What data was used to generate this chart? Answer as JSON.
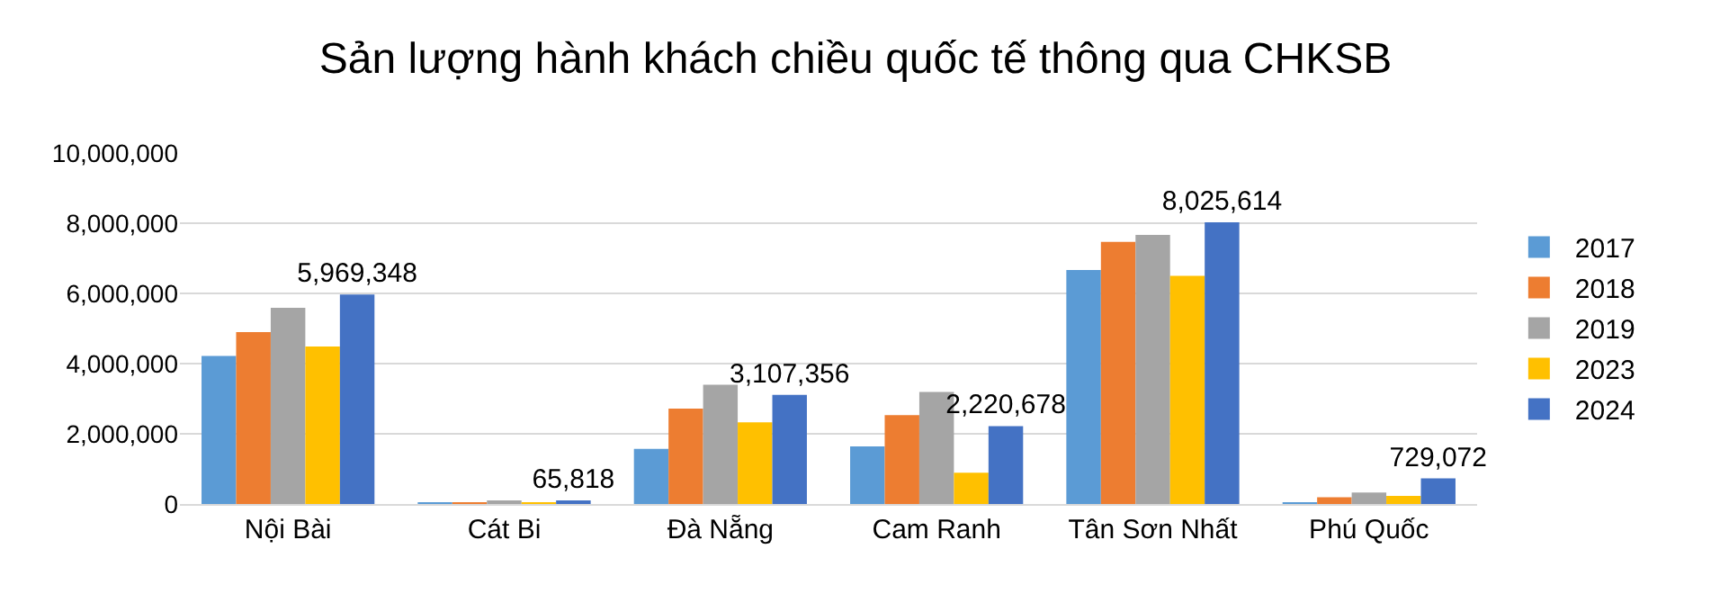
{
  "chart_data": {
    "type": "bar",
    "title": "Sản lượng hành khách chiều quốc tế thông qua CHKSB",
    "categories": [
      "Nội Bài",
      "Cát Bi",
      "Đà Nẵng",
      "Cam Ranh",
      "Tân Sơn Nhất",
      "Phú Quốc"
    ],
    "series": [
      {
        "name": "2017",
        "color": "#5b9bd5",
        "values": [
          4220000,
          50000,
          1570000,
          1640000,
          6670000,
          50000
        ]
      },
      {
        "name": "2018",
        "color": "#ed7d31",
        "values": [
          4900000,
          50000,
          2720000,
          2530000,
          7470000,
          190000
        ]
      },
      {
        "name": "2019",
        "color": "#a5a5a5",
        "values": [
          5590000,
          80000,
          3400000,
          3190000,
          7670000,
          330000
        ]
      },
      {
        "name": "2023",
        "color": "#ffc000",
        "values": [
          4490000,
          50000,
          2330000,
          890000,
          6500000,
          230000
        ]
      },
      {
        "name": "2024",
        "color": "#4472c4",
        "values": [
          5969348,
          65818,
          3107356,
          2220678,
          8025614,
          729072
        ],
        "value_labels": [
          "5,969,348",
          "65,818",
          "3,107,356",
          "2,220,678",
          "8,025,614",
          "729,072"
        ]
      }
    ],
    "ylim": [
      0,
      10000000
    ],
    "yticks": [
      {
        "value": 0,
        "label": "0"
      },
      {
        "value": 2000000,
        "label": "2,000,000"
      },
      {
        "value": 4000000,
        "label": "4,000,000"
      },
      {
        "value": 6000000,
        "label": "6,000,000"
      },
      {
        "value": 8000000,
        "label": "8,000,000"
      },
      {
        "value": 10000000,
        "label": "10,000,000"
      }
    ],
    "grid": "y",
    "legend": "right"
  }
}
